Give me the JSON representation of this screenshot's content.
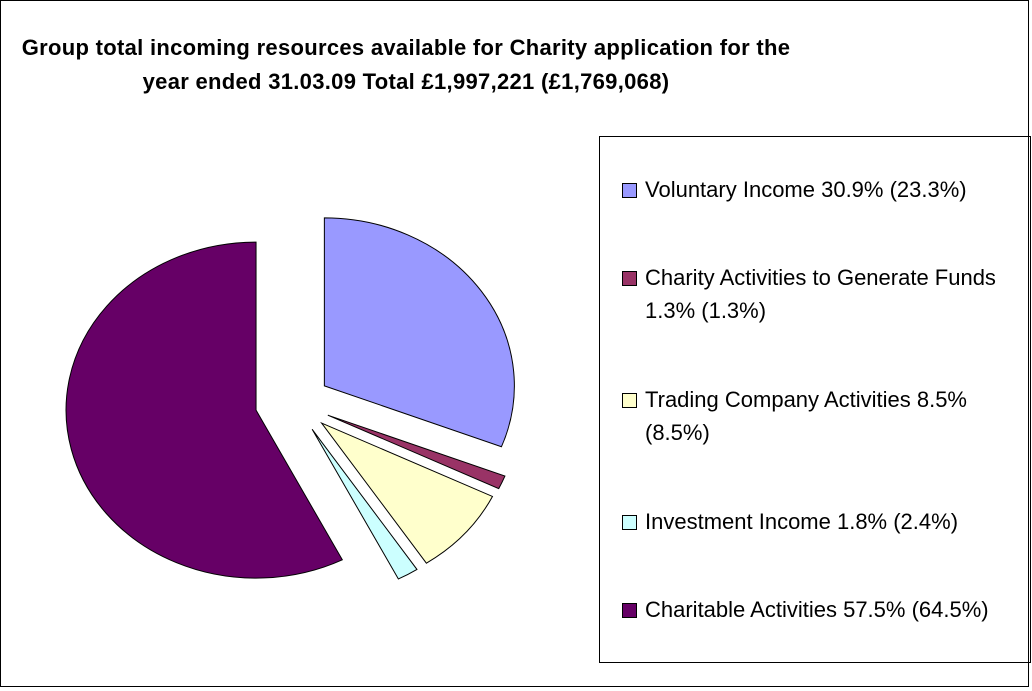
{
  "chart_data": {
    "type": "pie",
    "title": "Group total incoming resources available for Charity application for the year ended 31.03.09 Total £1,997,221 (£1,769,068)",
    "categories": [
      "Voluntary Income 30.9% (23.3%)",
      "Charity Activities to Generate Funds 1.3% (1.3%)",
      "Trading Company Activities 8.5% (8.5%)",
      "Investment Income 1.8% (2.4%)",
      "Charitable Activities 57.5% (64.5%)"
    ],
    "values": [
      30.9,
      1.3,
      8.5,
      1.8,
      57.5
    ],
    "colors": [
      "#9999ff",
      "#993366",
      "#ffffcc",
      "#ccffff",
      "#660066"
    ],
    "legend": "right"
  }
}
